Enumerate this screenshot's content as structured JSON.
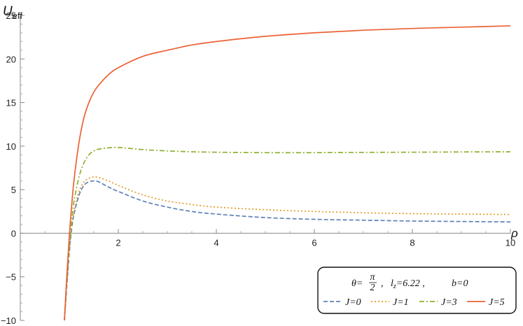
{
  "chart_data": {
    "type": "line",
    "title": "",
    "xlabel": "ρ",
    "ylabel": "U",
    "ylabel_sub": "eff",
    "xlim": [
      0,
      10
    ],
    "ylim": [
      -10,
      25
    ],
    "x_ticks": [
      2,
      4,
      6,
      8,
      10
    ],
    "y_ticks": [
      -10,
      -5,
      0,
      5,
      10,
      15,
      20,
      25
    ],
    "x_tick_labels": [
      "2",
      "4",
      "6",
      "8",
      "10"
    ],
    "y_tick_labels": [
      "−10",
      "−5",
      "0",
      "5",
      "10",
      "15",
      "20",
      "25"
    ],
    "grid": false,
    "legend_position": "bottom-right",
    "legend_title": {
      "theta_symbol": "θ",
      "eq": "=",
      "pi": "π",
      "two": "2",
      "lz_letter": "l",
      "lz_sub": "z",
      "lz_value": "=6.22 ,",
      "b_text": "b=0"
    },
    "series": [
      {
        "name": "J=0",
        "color": "#5E81B5",
        "dash": "dashed",
        "x": [
          0.9,
          0.95,
          1.0,
          1.05,
          1.1,
          1.2,
          1.3,
          1.4,
          1.5,
          1.6,
          1.8,
          2.0,
          2.5,
          3.0,
          3.5,
          4.0,
          5.0,
          6.0,
          7.0,
          8.0,
          9.0,
          10.0
        ],
        "y": [
          -10.0,
          -6.0,
          -2.2,
          0.6,
          2.3,
          4.4,
          5.5,
          5.9,
          6.0,
          5.9,
          5.3,
          4.8,
          3.7,
          3.0,
          2.5,
          2.2,
          1.8,
          1.6,
          1.5,
          1.4,
          1.35,
          1.3
        ]
      },
      {
        "name": "J=1",
        "color": "#E19C24",
        "dash": "dotted",
        "x": [
          0.9,
          0.95,
          1.0,
          1.05,
          1.1,
          1.2,
          1.3,
          1.4,
          1.5,
          1.6,
          1.8,
          2.0,
          2.5,
          3.0,
          3.5,
          4.0,
          5.0,
          6.0,
          7.0,
          8.0,
          9.0,
          10.0
        ],
        "y": [
          -10.0,
          -5.8,
          -2.0,
          0.8,
          2.6,
          4.8,
          5.9,
          6.3,
          6.45,
          6.4,
          6.0,
          5.5,
          4.4,
          3.7,
          3.3,
          3.0,
          2.7,
          2.5,
          2.35,
          2.25,
          2.2,
          2.15
        ]
      },
      {
        "name": "J=3",
        "color": "#8FB032",
        "dash": "dashdot",
        "x": [
          0.9,
          0.95,
          1.0,
          1.05,
          1.1,
          1.2,
          1.3,
          1.4,
          1.5,
          1.6,
          1.8,
          2.0,
          2.5,
          3.0,
          3.5,
          4.0,
          5.0,
          6.0,
          7.0,
          8.0,
          9.0,
          10.0
        ],
        "y": [
          -10.0,
          -5.5,
          -1.5,
          1.5,
          3.8,
          6.5,
          8.1,
          9.0,
          9.45,
          9.65,
          9.8,
          9.85,
          9.6,
          9.45,
          9.35,
          9.3,
          9.25,
          9.25,
          9.28,
          9.3,
          9.33,
          9.35
        ]
      },
      {
        "name": "J=5",
        "color": "#EB6235",
        "dash": "solid",
        "x": [
          0.9,
          0.95,
          1.0,
          1.05,
          1.1,
          1.2,
          1.3,
          1.4,
          1.5,
          1.6,
          1.8,
          2.0,
          2.5,
          3.0,
          3.5,
          4.0,
          5.0,
          6.0,
          7.0,
          8.0,
          9.0,
          10.0
        ],
        "y": [
          -10.0,
          -4.8,
          -0.3,
          3.3,
          6.3,
          10.5,
          13.3,
          15.0,
          16.2,
          17.0,
          18.2,
          19.0,
          20.3,
          21.0,
          21.6,
          22.0,
          22.6,
          23.0,
          23.3,
          23.5,
          23.65,
          23.8
        ]
      }
    ]
  }
}
